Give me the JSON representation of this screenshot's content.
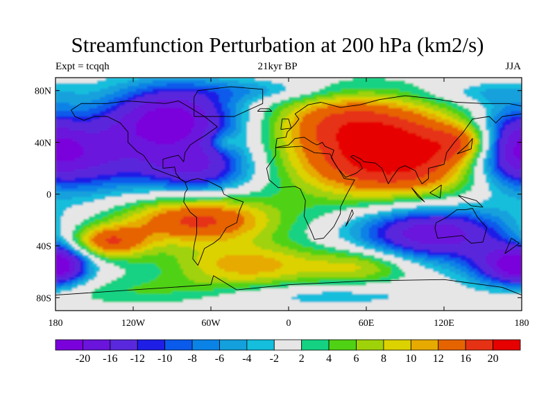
{
  "title": "Streamfunction Perturbation at 200 hPa (km2/s)",
  "subtitle_left": "Expt = tcqqh",
  "subtitle_center": "21kyr BP",
  "subtitle_right": "JJA",
  "lat_ticks": [
    "80N",
    "40N",
    "0",
    "40S",
    "80S"
  ],
  "lon_ticks": [
    "180",
    "120W",
    "60W",
    "0",
    "60E",
    "120E",
    "180"
  ],
  "colorbar": {
    "colors": [
      "#7a00dc",
      "#6a14dc",
      "#5a28dc",
      "#1e1ee6",
      "#0a5aeb",
      "#0a82e6",
      "#14a0dc",
      "#14bedc",
      "#e6e6e6",
      "#14d282",
      "#50d214",
      "#a0d20a",
      "#dcd200",
      "#e6aa00",
      "#e66400",
      "#e63214",
      "#e60000"
    ],
    "labels": [
      "-20",
      "-16",
      "-12",
      "-10",
      "-8",
      "-6",
      "-4",
      "-2",
      "2",
      "4",
      "6",
      "8",
      "10",
      "12",
      "16",
      "20"
    ]
  },
  "chart_data": {
    "type": "filled-contour-map",
    "variable": "Streamfunction Perturbation at 200 hPa",
    "units": "km2/s",
    "season": "JJA",
    "experiment": "tcqqh",
    "period": "21kyr BP",
    "lon_range": [
      -180,
      180
    ],
    "lat_range": [
      -90,
      90
    ],
    "levels": [
      -20,
      -16,
      -12,
      -10,
      -8,
      -6,
      -4,
      -2,
      2,
      4,
      6,
      8,
      10,
      12,
      16,
      20
    ],
    "centers": [
      {
        "lon": 80,
        "lat": 30,
        "value": 24,
        "sx": 55,
        "sy": 24
      },
      {
        "lon": 40,
        "lat": 60,
        "value": 9,
        "sx": 40,
        "sy": 15
      },
      {
        "lon": 140,
        "lat": 40,
        "value": 10,
        "sx": 18,
        "sy": 10
      },
      {
        "lon": -50,
        "lat": 40,
        "value": 5,
        "sx": 8,
        "sy": 5
      },
      {
        "lon": -70,
        "lat": -20,
        "value": 17,
        "sx": 42,
        "sy": 13
      },
      {
        "lon": -140,
        "lat": -37,
        "value": 15,
        "sx": 22,
        "sy": 9
      },
      {
        "lon": -30,
        "lat": -55,
        "value": 11,
        "sx": 45,
        "sy": 12
      },
      {
        "lon": 60,
        "lat": -55,
        "value": 8,
        "sx": 28,
        "sy": 10
      },
      {
        "lon": -110,
        "lat": -75,
        "value": 4,
        "sx": 60,
        "sy": 8
      },
      {
        "lon": -90,
        "lat": 58,
        "value": -22,
        "sx": 35,
        "sy": 18
      },
      {
        "lon": -165,
        "lat": 30,
        "value": -18,
        "sx": 40,
        "sy": 20
      },
      {
        "lon": -70,
        "lat": 20,
        "value": -15,
        "sx": 30,
        "sy": 14
      },
      {
        "lon": 110,
        "lat": -30,
        "value": -20,
        "sx": 40,
        "sy": 15
      },
      {
        "lon": 170,
        "lat": -55,
        "value": -16,
        "sx": 22,
        "sy": 12
      },
      {
        "lon": 170,
        "lat": 40,
        "value": -12,
        "sx": 20,
        "sy": 20
      },
      {
        "lon": -175,
        "lat": -55,
        "value": -12,
        "sx": 14,
        "sy": 10
      },
      {
        "lon": -20,
        "lat": 80,
        "value": -5,
        "sx": 40,
        "sy": 6
      },
      {
        "lon": 150,
        "lat": 78,
        "value": -4,
        "sx": 30,
        "sy": 6
      },
      {
        "lon": 20,
        "lat": -78,
        "value": -4,
        "sx": 60,
        "sy": 6
      }
    ],
    "background": 0,
    "outline_polygons": [
      [
        [
          -168,
          65
        ],
        [
          -160,
          70
        ],
        [
          -140,
          70
        ],
        [
          -125,
          72
        ],
        [
          -95,
          70
        ],
        [
          -85,
          72
        ],
        [
          -78,
          68
        ],
        [
          -65,
          60
        ],
        [
          -55,
          52
        ],
        [
          -65,
          45
        ],
        [
          -70,
          42
        ],
        [
          -76,
          38
        ],
        [
          -80,
          32
        ],
        [
          -81,
          25
        ],
        [
          -85,
          30
        ],
        [
          -90,
          29
        ],
        [
          -97,
          27
        ],
        [
          -97,
          20
        ],
        [
          -88,
          21
        ],
        [
          -87,
          16
        ],
        [
          -83,
          11
        ],
        [
          -79,
          9
        ],
        [
          -86,
          13
        ],
        [
          -92,
          15
        ],
        [
          -105,
          20
        ],
        [
          -112,
          30
        ],
        [
          -117,
          33
        ],
        [
          -124,
          40
        ],
        [
          -124,
          48
        ],
        [
          -130,
          55
        ],
        [
          -140,
          60
        ],
        [
          -150,
          60
        ],
        [
          -158,
          57
        ],
        [
          -165,
          60
        ],
        [
          -168,
          65
        ]
      ],
      [
        [
          -80,
          9
        ],
        [
          -75,
          11
        ],
        [
          -70,
          12
        ],
        [
          -62,
          10
        ],
        [
          -52,
          5
        ],
        [
          -50,
          0
        ],
        [
          -44,
          -3
        ],
        [
          -35,
          -6
        ],
        [
          -38,
          -13
        ],
        [
          -40,
          -22
        ],
        [
          -48,
          -26
        ],
        [
          -53,
          -34
        ],
        [
          -58,
          -38
        ],
        [
          -65,
          -42
        ],
        [
          -68,
          -50
        ],
        [
          -70,
          -55
        ],
        [
          -74,
          -50
        ],
        [
          -73,
          -40
        ],
        [
          -71,
          -30
        ],
        [
          -71,
          -18
        ],
        [
          -76,
          -14
        ],
        [
          -81,
          -6
        ],
        [
          -80,
          1
        ],
        [
          -78,
          4
        ],
        [
          -80,
          9
        ]
      ],
      [
        [
          -10,
          36
        ],
        [
          -5,
          36
        ],
        [
          10,
          37
        ],
        [
          20,
          32
        ],
        [
          32,
          31
        ],
        [
          35,
          25
        ],
        [
          43,
          12
        ],
        [
          51,
          11
        ],
        [
          45,
          0
        ],
        [
          40,
          -10
        ],
        [
          40,
          -15
        ],
        [
          35,
          -25
        ],
        [
          27,
          -34
        ],
        [
          20,
          -35
        ],
        [
          18,
          -30
        ],
        [
          12,
          -17
        ],
        [
          13,
          -5
        ],
        [
          9,
          4
        ],
        [
          5,
          6
        ],
        [
          -8,
          5
        ],
        [
          -15,
          11
        ],
        [
          -17,
          20
        ],
        [
          -10,
          30
        ],
        [
          -10,
          36
        ]
      ],
      [
        [
          -10,
          36
        ],
        [
          -9,
          43
        ],
        [
          -2,
          44
        ],
        [
          -1,
          48
        ],
        [
          5,
          54
        ],
        [
          8,
          58
        ],
        [
          5,
          62
        ],
        [
          15,
          69
        ],
        [
          25,
          71
        ],
        [
          40,
          67
        ],
        [
          55,
          69
        ],
        [
          70,
          73
        ],
        [
          90,
          76
        ],
        [
          110,
          74
        ],
        [
          130,
          71
        ],
        [
          150,
          70
        ],
        [
          170,
          70
        ],
        [
          180,
          68
        ],
        [
          180,
          62
        ],
        [
          165,
          60
        ],
        [
          160,
          55
        ],
        [
          155,
          60
        ],
        [
          142,
          58
        ],
        [
          135,
          48
        ],
        [
          128,
          40
        ],
        [
          122,
          32
        ],
        [
          120,
          23
        ],
        [
          108,
          20
        ],
        [
          108,
          12
        ],
        [
          103,
          8
        ],
        [
          100,
          13
        ],
        [
          98,
          18
        ],
        [
          92,
          21
        ],
        [
          90,
          22
        ],
        [
          85,
          20
        ],
        [
          80,
          13
        ],
        [
          77,
          8
        ],
        [
          72,
          20
        ],
        [
          67,
          24
        ],
        [
          58,
          25
        ],
        [
          56,
          27
        ],
        [
          50,
          30
        ],
        [
          48,
          29
        ],
        [
          55,
          24
        ],
        [
          57,
          20
        ],
        [
          52,
          16
        ],
        [
          44,
          13
        ],
        [
          38,
          20
        ],
        [
          33,
          28
        ],
        [
          35,
          34
        ],
        [
          28,
          37
        ],
        [
          26,
          40
        ],
        [
          22,
          38
        ],
        [
          18,
          40
        ],
        [
          12,
          44
        ],
        [
          5,
          43
        ],
        [
          0,
          38
        ],
        [
          -10,
          36
        ]
      ],
      [
        [
          114,
          -22
        ],
        [
          122,
          -18
        ],
        [
          130,
          -12
        ],
        [
          137,
          -12
        ],
        [
          142,
          -11
        ],
        [
          146,
          -18
        ],
        [
          153,
          -26
        ],
        [
          150,
          -37
        ],
        [
          141,
          -38
        ],
        [
          134,
          -32
        ],
        [
          125,
          -33
        ],
        [
          115,
          -34
        ],
        [
          113,
          -26
        ],
        [
          114,
          -22
        ]
      ],
      [
        [
          -73,
          60
        ],
        [
          -60,
          60
        ],
        [
          -42,
          60
        ],
        [
          -20,
          70
        ],
        [
          -20,
          81
        ],
        [
          -45,
          83
        ],
        [
          -70,
          80
        ],
        [
          -73,
          75
        ],
        [
          -73,
          60
        ]
      ],
      [
        [
          -6,
          50
        ],
        [
          2,
          51
        ],
        [
          0,
          58
        ],
        [
          -5,
          58
        ],
        [
          -6,
          50
        ]
      ],
      [
        [
          -24,
          64
        ],
        [
          -13,
          64
        ],
        [
          -15,
          66
        ],
        [
          -22,
          66
        ],
        [
          -24,
          64
        ]
      ],
      [
        [
          130,
          31
        ],
        [
          141,
          35
        ],
        [
          142,
          43
        ],
        [
          138,
          38
        ],
        [
          130,
          31
        ]
      ],
      [
        [
          95,
          5
        ],
        [
          105,
          -6
        ],
        [
          100,
          -2
        ],
        [
          95,
          5
        ]
      ],
      [
        [
          109,
          1
        ],
        [
          118,
          7
        ],
        [
          117,
          -3
        ],
        [
          109,
          1
        ]
      ],
      [
        [
          131,
          -1
        ],
        [
          145,
          -5
        ],
        [
          150,
          -10
        ],
        [
          141,
          -9
        ],
        [
          131,
          -1
        ]
      ],
      [
        [
          44,
          -25
        ],
        [
          50,
          -15
        ],
        [
          49,
          -12
        ],
        [
          44,
          -25
        ]
      ],
      [
        [
          167,
          -46
        ],
        [
          174,
          -41
        ],
        [
          178,
          -38
        ],
        [
          172,
          -34
        ],
        [
          167,
          -46
        ]
      ],
      [
        [
          -180,
          -78
        ],
        [
          -120,
          -74
        ],
        [
          -60,
          -70
        ],
        [
          -58,
          -63
        ],
        [
          -40,
          -74
        ],
        [
          0,
          -70
        ],
        [
          60,
          -67
        ],
        [
          120,
          -66
        ],
        [
          165,
          -72
        ],
        [
          180,
          -78
        ]
      ]
    ]
  }
}
